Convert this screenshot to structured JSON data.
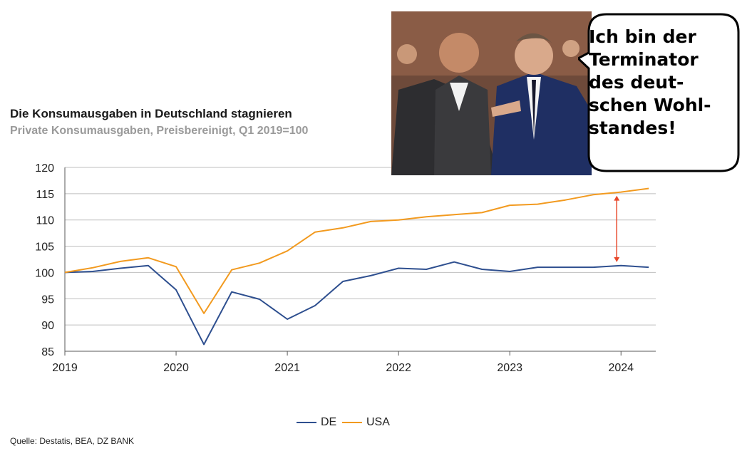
{
  "chart_data": {
    "type": "line",
    "title": "Die Konsumausgaben in Deutschland stagnieren",
    "subtitle": "Private Konsumausgaben, Preisbereinigt, Q1 2019=100",
    "source": "Quelle: Destatis, BEA, DZ BANK",
    "x": [
      "2019Q1",
      "2019Q2",
      "2019Q3",
      "2019Q4",
      "2020Q1",
      "2020Q2",
      "2020Q3",
      "2020Q4",
      "2021Q1",
      "2021Q2",
      "2021Q3",
      "2021Q4",
      "2022Q1",
      "2022Q2",
      "2022Q3",
      "2022Q4",
      "2023Q1",
      "2023Q2",
      "2023Q3",
      "2023Q4",
      "2024Q1",
      "2024Q2"
    ],
    "x_tick_labels": [
      "2019",
      "2020",
      "2021",
      "2022",
      "2023",
      "2024"
    ],
    "y_tick_labels": [
      "85",
      "90",
      "95",
      "100",
      "105",
      "110",
      "115",
      "120"
    ],
    "ylim": [
      85,
      120
    ],
    "grid": true,
    "legend_position": "bottom-center",
    "series": [
      {
        "name": "DE",
        "color": "#2e4f8f",
        "values": [
          100,
          100.2,
          100.8,
          101.3,
          96.7,
          86.3,
          96.3,
          94.9,
          91.1,
          93.7,
          98.3,
          99.4,
          100.8,
          100.6,
          102.0,
          100.6,
          100.2,
          101.0,
          101.0,
          101.0,
          101.3,
          101.0
        ]
      },
      {
        "name": "USA",
        "color": "#f29a1f",
        "values": [
          100,
          100.9,
          102.1,
          102.8,
          101.1,
          92.2,
          100.5,
          101.8,
          104.1,
          107.7,
          108.5,
          109.7,
          110.0,
          110.6,
          111.0,
          111.4,
          112.8,
          113.0,
          113.8,
          114.8,
          115.3,
          116.0
        ]
      }
    ],
    "annotation": {
      "type": "double-arrow",
      "color": "#e8482b",
      "x": "2024Q1",
      "y_from": 101.3,
      "y_to": 115.3
    }
  },
  "speech_bubble": {
    "text": "Ich bin der\nTerminator\ndes deut-\nschen Wohl-\nstandes!"
  },
  "colors": {
    "grid": "#bfbfbf",
    "axis": "#595959"
  }
}
